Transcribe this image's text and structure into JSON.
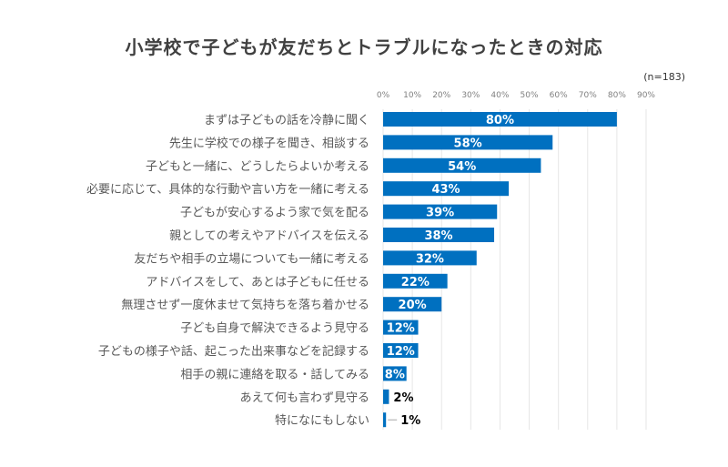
{
  "chart_data": {
    "type": "bar",
    "orientation": "horizontal",
    "title": "小学校で子どもが友だちとトラブルになったときの対応",
    "note": "(n=183)",
    "categories": [
      "まずは子どもの話を冷静に聞く",
      "先生に学校での様子を聞き、相談する",
      "子どもと一緒に、どうしたらよいか考える",
      "必要に応じて、具体的な行動や言い方を一緒に考える",
      "子どもが安心するよう家で気を配る",
      "親としての考えやアドバイスを伝える",
      "友だちや相手の立場についても一緒に考える",
      "アドバイスをして、あとは子どもに任せる",
      "無理させず一度休ませて気持ちを落ち着かせる",
      "子ども自身で解決できるよう見守る",
      "子どもの様子や話、起こった出来事などを記録する",
      "相手の親に連絡を取る・話してみる",
      "あえて何も言わず見守る",
      "特になにもしない"
    ],
    "values": [
      80,
      58,
      54,
      43,
      39,
      38,
      32,
      22,
      20,
      12,
      12,
      8,
      2,
      1
    ],
    "data_labels": [
      "80%",
      "58%",
      "54%",
      "43%",
      "39%",
      "38%",
      "32%",
      "22%",
      "20%",
      "12%",
      "12%",
      "8%",
      "2%",
      "1%"
    ],
    "x_ticks": [
      "0%",
      "10%",
      "20%",
      "30%",
      "40%",
      "50%",
      "60%",
      "70%",
      "80%",
      "90%"
    ],
    "xlim": [
      0,
      90
    ],
    "x_axis_position": "top",
    "grid": true,
    "bar_color": "#0070C0"
  }
}
